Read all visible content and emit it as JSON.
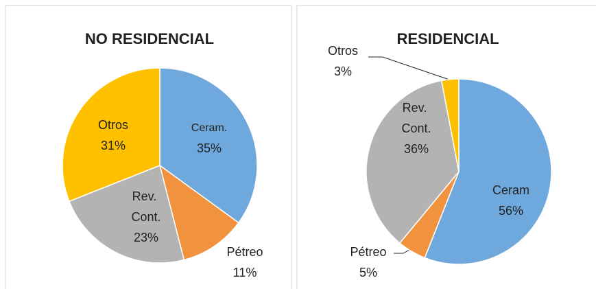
{
  "chart_data": [
    {
      "type": "pie",
      "title": "NO RESIDENCIAL",
      "categories": [
        "Ceram.",
        "Pétreo",
        "Rev. Cont.",
        "Otros"
      ],
      "values": [
        35,
        11,
        23,
        31
      ],
      "value_labels": [
        "35%",
        "11%",
        "23%",
        "31%"
      ],
      "colors": [
        "#6fa8dc",
        "#f0923e",
        "#b3b3b3",
        "#ffc000"
      ]
    },
    {
      "type": "pie",
      "title": "RESIDENCIAL",
      "categories": [
        "Ceram",
        "Pétreo",
        "Rev. Cont.",
        "Otros"
      ],
      "values": [
        56,
        5,
        36,
        3
      ],
      "value_labels": [
        "56%",
        "5%",
        "36%",
        "3%"
      ],
      "colors": [
        "#6fa8dc",
        "#f0923e",
        "#b3b3b3",
        "#ffc000"
      ]
    }
  ]
}
